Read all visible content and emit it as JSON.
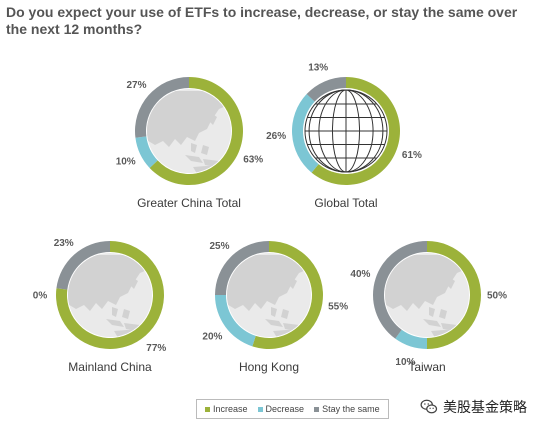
{
  "title": "Do you expect your use of ETFs to increase, decrease, or stay the same over the next 12 months?",
  "colors": {
    "increase": "#9cb23a",
    "decrease": "#7cc6d4",
    "stay": "#8a9196",
    "map": "#d2d2d2",
    "map_bg": "#eaeaea"
  },
  "legend": {
    "increase": "Increase",
    "decrease": "Decrease",
    "stay": "Stay the same"
  },
  "watermark": {
    "text": "美股基金策略",
    "icon": "wechat-icon"
  },
  "chart_data": {
    "type": "pie",
    "subtype": "donut",
    "series_names": [
      "Increase",
      "Decrease",
      "Stay the same"
    ],
    "charts": [
      {
        "label": "Greater China Total",
        "increase": 63,
        "decrease": 10,
        "stay": 27,
        "icon": "asia-map"
      },
      {
        "label": "Global Total",
        "increase": 61,
        "decrease": 26,
        "stay": 13,
        "icon": "globe"
      },
      {
        "label": "Mainland China",
        "increase": 77,
        "decrease": 0,
        "stay": 23,
        "icon": "asia-map"
      },
      {
        "label": "Hong Kong",
        "increase": 55,
        "decrease": 20,
        "stay": 25,
        "icon": "asia-map"
      },
      {
        "label": "Taiwan",
        "increase": 50,
        "decrease": 10,
        "stay": 40,
        "icon": "asia-map"
      }
    ]
  }
}
